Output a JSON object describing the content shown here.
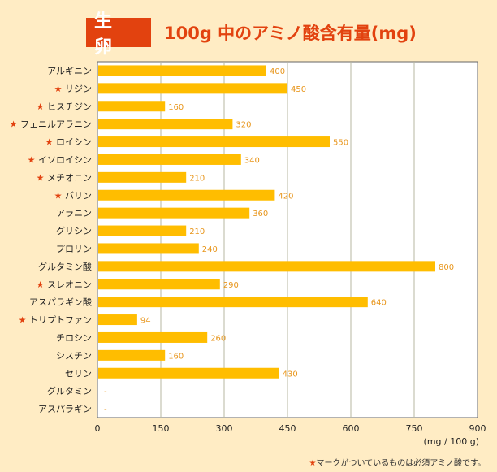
{
  "header": {
    "badge": "生 卵",
    "title": "100g 中のアミノ酸含有量(mg)"
  },
  "footnote": {
    "star": "★",
    "text": "マークがついているものは必須アミノ酸です。"
  },
  "colors": {
    "bar": "#ffbd00",
    "star": "#e2420f",
    "value_label": "#e8961c",
    "background": "#ffecc4",
    "plot": "#ffffff",
    "grid": "#b7b7a0"
  },
  "chart_data": {
    "type": "bar",
    "orientation": "horizontal",
    "categories": [
      "アルギニン",
      "リジン",
      "ヒスチジン",
      "フェニルアラニン",
      "ロイシン",
      "イソロイシン",
      "メチオニン",
      "バリン",
      "アラニン",
      "グリシン",
      "プロリン",
      "グルタミン酸",
      "スレオニン",
      "アスパラギン酸",
      "トリプトファン",
      "チロシン",
      "シスチン",
      "セリン",
      "グルタミン",
      "アスパラギン"
    ],
    "essential": [
      false,
      true,
      true,
      true,
      true,
      true,
      true,
      true,
      false,
      false,
      false,
      false,
      true,
      false,
      true,
      false,
      false,
      false,
      false,
      false
    ],
    "values": [
      400,
      450,
      160,
      320,
      550,
      340,
      210,
      420,
      360,
      210,
      240,
      800,
      290,
      640,
      94,
      260,
      160,
      430,
      null,
      null
    ],
    "value_labels": [
      "400",
      "450",
      "160",
      "320",
      "550",
      "340",
      "210",
      "420",
      "360",
      "210",
      "240",
      "800",
      "290",
      "640",
      "94",
      "260",
      "160",
      "430",
      "-",
      "-"
    ],
    "xlim": [
      0,
      900
    ],
    "xticks": [
      "0",
      "150",
      "300",
      "450",
      "600",
      "750",
      "900"
    ],
    "unit_label": "(mg / 100 g)",
    "star_marker": "★",
    "grid": true
  }
}
